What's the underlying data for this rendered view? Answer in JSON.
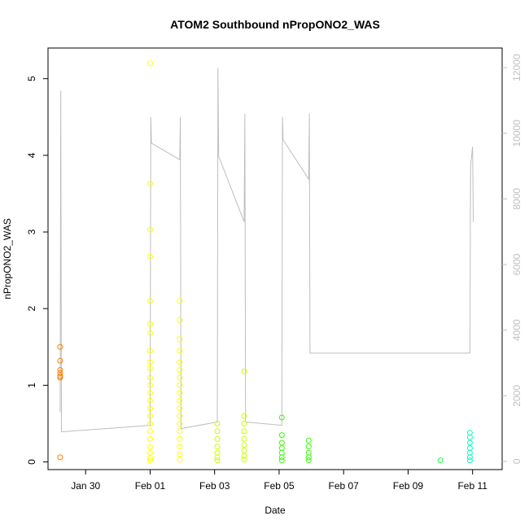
{
  "chart_data": {
    "type": "scatter",
    "title": "ATOM2 Southbound nPropONO2_WAS",
    "xlabel": "Date",
    "ylabel": "nPropONO2_WAS",
    "x_ticks": [
      "Jan 30",
      "Feb 01",
      "Feb 03",
      "Feb 05",
      "Feb 07",
      "Feb 09",
      "Feb 11"
    ],
    "y_ticks": [
      "0",
      "1",
      "2",
      "3",
      "4",
      "5"
    ],
    "y2_ticks": [
      "0",
      "2000",
      "4000",
      "6000",
      "8000",
      "10000",
      "12000"
    ],
    "xlim": [
      "2016-01-28T20:00",
      "2016-02-11T22:00"
    ],
    "ylim": [
      -0.1,
      5.4
    ],
    "y2lim": [
      -250,
      12600
    ],
    "grid": false,
    "colors": {
      "orange": "#FF8000",
      "yellow": "#FFFF00",
      "yellowgreen": "#CCFF00",
      "green": "#33FF00",
      "springgreen": "#00FF40",
      "cyan": "#00FFC0",
      "altitude": "#BEBEBE"
    },
    "series": [
      {
        "color": "#FF8000",
        "points": [
          [
            "2016-01-29T05:00",
            1.5
          ],
          [
            "2016-01-29T05:00",
            1.32
          ],
          [
            "2016-01-29T05:00",
            1.2
          ],
          [
            "2016-01-29T05:00",
            1.16
          ],
          [
            "2016-01-29T05:00",
            1.12
          ],
          [
            "2016-01-29T05:00",
            1.1
          ],
          [
            "2016-01-29T05:00",
            0.06
          ]
        ]
      },
      {
        "color": "#FFFF00",
        "points": [
          [
            "2016-02-01T00:00",
            5.2
          ],
          [
            "2016-02-01T00:00",
            3.63
          ],
          [
            "2016-02-01T00:00",
            3.03
          ],
          [
            "2016-02-01T00:00",
            2.68
          ],
          [
            "2016-02-01T00:00",
            2.1
          ],
          [
            "2016-02-01T00:00",
            1.8
          ],
          [
            "2016-02-01T00:00",
            1.68
          ],
          [
            "2016-02-01T00:00",
            1.45
          ],
          [
            "2016-02-01T00:00",
            1.3
          ],
          [
            "2016-02-01T00:00",
            1.22
          ],
          [
            "2016-02-01T00:00",
            1.1
          ],
          [
            "2016-02-01T00:00",
            1.0
          ],
          [
            "2016-02-01T00:00",
            0.9
          ],
          [
            "2016-02-01T00:00",
            0.8
          ],
          [
            "2016-02-01T00:00",
            0.7
          ],
          [
            "2016-02-01T00:00",
            0.6
          ],
          [
            "2016-02-01T00:00",
            0.5
          ],
          [
            "2016-02-01T00:00",
            0.4
          ],
          [
            "2016-02-01T00:00",
            0.3
          ],
          [
            "2016-02-01T00:00",
            0.2
          ],
          [
            "2016-02-01T00:00",
            0.12
          ],
          [
            "2016-02-01T00:00",
            0.05
          ],
          [
            "2016-02-01T00:00",
            0.02
          ],
          [
            "2016-02-01T22:00",
            2.1
          ],
          [
            "2016-02-01T22:00",
            1.85
          ],
          [
            "2016-02-01T22:00",
            1.6
          ],
          [
            "2016-02-01T22:00",
            1.45
          ],
          [
            "2016-02-01T22:00",
            1.3
          ],
          [
            "2016-02-01T22:00",
            1.2
          ],
          [
            "2016-02-01T22:00",
            1.1
          ],
          [
            "2016-02-01T22:00",
            1.0
          ],
          [
            "2016-02-01T22:00",
            0.9
          ],
          [
            "2016-02-01T22:00",
            0.8
          ],
          [
            "2016-02-01T22:00",
            0.7
          ],
          [
            "2016-02-01T22:00",
            0.6
          ],
          [
            "2016-02-01T22:00",
            0.5
          ],
          [
            "2016-02-01T22:00",
            0.4
          ],
          [
            "2016-02-01T22:00",
            0.3
          ],
          [
            "2016-02-01T22:00",
            0.2
          ],
          [
            "2016-02-01T22:00",
            0.1
          ],
          [
            "2016-02-01T22:00",
            0.03
          ]
        ]
      },
      {
        "color": "#CCFF00",
        "points": [
          [
            "2016-02-03T02:00",
            0.5
          ],
          [
            "2016-02-03T02:00",
            0.4
          ],
          [
            "2016-02-03T02:00",
            0.3
          ],
          [
            "2016-02-03T02:00",
            0.2
          ],
          [
            "2016-02-03T02:00",
            0.12
          ],
          [
            "2016-02-03T02:00",
            0.06
          ],
          [
            "2016-02-03T02:00",
            0.02
          ],
          [
            "2016-02-03T22:00",
            1.18
          ],
          [
            "2016-02-03T22:00",
            0.6
          ],
          [
            "2016-02-03T22:00",
            0.5
          ],
          [
            "2016-02-03T22:00",
            0.4
          ],
          [
            "2016-02-03T22:00",
            0.3
          ],
          [
            "2016-02-03T22:00",
            0.22
          ],
          [
            "2016-02-03T22:00",
            0.15
          ],
          [
            "2016-02-03T22:00",
            0.08
          ],
          [
            "2016-02-03T22:00",
            0.03
          ]
        ]
      },
      {
        "color": "#33FF00",
        "points": [
          [
            "2016-02-05T02:00",
            0.58
          ],
          [
            "2016-02-05T02:00",
            0.35
          ],
          [
            "2016-02-05T02:00",
            0.25
          ],
          [
            "2016-02-05T02:00",
            0.18
          ],
          [
            "2016-02-05T02:00",
            0.12
          ],
          [
            "2016-02-05T02:00",
            0.06
          ],
          [
            "2016-02-05T02:00",
            0.02
          ],
          [
            "2016-02-05T22:00",
            0.28
          ],
          [
            "2016-02-05T22:00",
            0.2
          ],
          [
            "2016-02-05T22:00",
            0.12
          ],
          [
            "2016-02-05T22:00",
            0.06
          ],
          [
            "2016-02-05T22:00",
            0.02
          ]
        ]
      },
      {
        "color": "#00FF40",
        "points": [
          [
            "2016-02-10T00:00",
            0.02
          ]
        ]
      },
      {
        "color": "#00FFC0",
        "points": [
          [
            "2016-02-10T22:00",
            0.38
          ],
          [
            "2016-02-10T22:00",
            0.32
          ],
          [
            "2016-02-10T22:00",
            0.25
          ],
          [
            "2016-02-10T22:00",
            0.18
          ],
          [
            "2016-02-10T22:00",
            0.12
          ],
          [
            "2016-02-10T22:00",
            0.06
          ],
          [
            "2016-02-10T22:00",
            0.02
          ]
        ]
      }
    ],
    "altitude_series": {
      "color": "#BEBEBE",
      "points": [
        [
          "2016-01-29T05:00",
          1500
        ],
        [
          "2016-01-29T05:30",
          11300
        ],
        [
          "2016-01-29T06:00",
          900
        ],
        [
          "2016-02-01T00:00",
          1100
        ],
        [
          "2016-02-01T00:30",
          10500
        ],
        [
          "2016-02-01T01:00",
          9700
        ],
        [
          "2016-02-01T22:00",
          9200
        ],
        [
          "2016-02-01T22:30",
          10500
        ],
        [
          "2016-02-01T23:00",
          1000
        ],
        [
          "2016-02-03T02:00",
          1200
        ],
        [
          "2016-02-03T02:30",
          12000
        ],
        [
          "2016-02-03T03:00",
          9300
        ],
        [
          "2016-02-03T22:00",
          7300
        ],
        [
          "2016-02-03T22:30",
          10600
        ],
        [
          "2016-02-03T23:00",
          1200
        ],
        [
          "2016-02-05T02:00",
          1100
        ],
        [
          "2016-02-05T02:30",
          10500
        ],
        [
          "2016-02-05T03:00",
          9800
        ],
        [
          "2016-02-05T22:00",
          8600
        ],
        [
          "2016-02-05T22:30",
          10600
        ],
        [
          "2016-02-05T23:00",
          3300
        ],
        [
          "2016-02-10T22:00",
          3300
        ],
        [
          "2016-02-10T22:30",
          9000
        ],
        [
          "2016-02-11T00:00",
          9600
        ],
        [
          "2016-02-11T00:30",
          7300
        ]
      ]
    }
  }
}
